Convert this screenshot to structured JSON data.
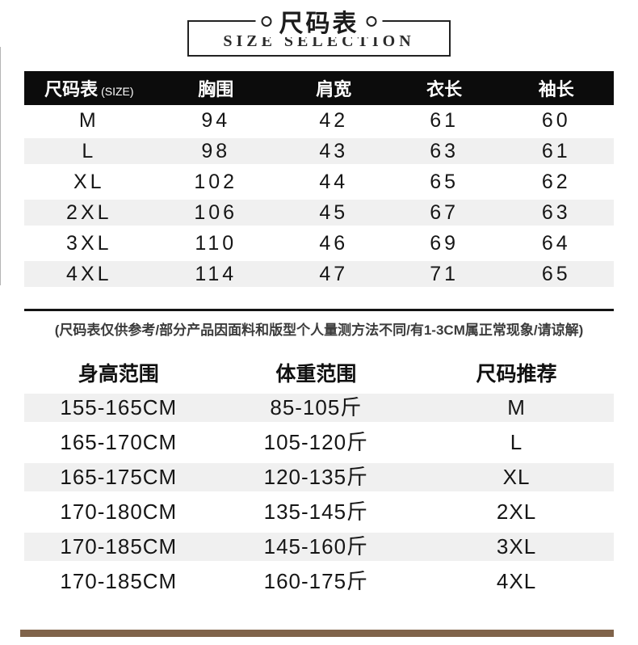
{
  "title_box": {
    "title": "尺码表",
    "subtitle": "SIZE SELECTION"
  },
  "size_table_header": {
    "main": "尺码表",
    "suffix": "(SIZE)"
  },
  "note": "(尺码表仅供参考/部分产品因面料和版型个人量测方法不同/有1-3CM属正常现象/请谅解)",
  "colors": {
    "header_bg": "#0c0c0c",
    "header_text": "#ffffff",
    "row_stripe": "#f0f0f0",
    "text": "#141414",
    "note_text": "#3c3c3c",
    "box_border": "#222222",
    "bottom_bar": "#80634a"
  },
  "chart_data": [
    {
      "type": "table",
      "title": "尺码表 / SIZE SELECTION",
      "columns": [
        "尺码表(SIZE)",
        "胸围",
        "肩宽",
        "衣长",
        "袖长"
      ],
      "rows": [
        [
          "M",
          "94",
          "42",
          "61",
          "60"
        ],
        [
          "L",
          "98",
          "43",
          "63",
          "61"
        ],
        [
          "XL",
          "102",
          "44",
          "65",
          "62"
        ],
        [
          "2XL",
          "106",
          "45",
          "67",
          "63"
        ],
        [
          "3XL",
          "110",
          "46",
          "69",
          "64"
        ],
        [
          "4XL",
          "114",
          "47",
          "71",
          "65"
        ]
      ]
    },
    {
      "type": "table",
      "title": "身高体重尺码推荐",
      "columns": [
        "身高范围",
        "体重范围",
        "尺码推荐"
      ],
      "rows": [
        [
          "155-165CM",
          "85-105斤",
          "M"
        ],
        [
          "165-170CM",
          "105-120斤",
          "L"
        ],
        [
          "165-175CM",
          "120-135斤",
          "XL"
        ],
        [
          "170-180CM",
          "135-145斤",
          "2XL"
        ],
        [
          "170-185CM",
          "145-160斤",
          "3XL"
        ],
        [
          "170-185CM",
          "160-175斤",
          "4XL"
        ]
      ]
    }
  ]
}
